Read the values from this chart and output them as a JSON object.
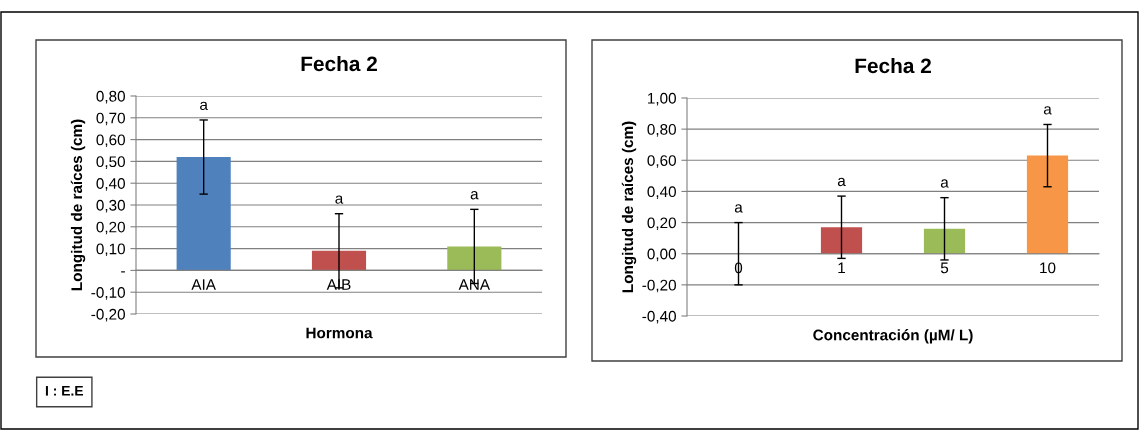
{
  "chart_data": [
    {
      "type": "bar",
      "title": "Fecha 2",
      "xlabel": "Hormona",
      "ylabel": "Longitud de raíces (cm)",
      "categories": [
        "AIA",
        "AIB",
        "ANA"
      ],
      "values": [
        0.52,
        0.09,
        0.11
      ],
      "colors": [
        "#4f81bd",
        "#c0504d",
        "#9bbb59"
      ],
      "errors": [
        0.17,
        0.17,
        0.17
      ],
      "ylim": [
        -0.2,
        0.8
      ],
      "yticks": [
        {
          "value": -0.2,
          "label": "-0,20"
        },
        {
          "value": -0.1,
          "label": "-0,10"
        },
        {
          "value": 0,
          "label": "-"
        },
        {
          "value": 0.1,
          "label": "0,10"
        },
        {
          "value": 0.2,
          "label": "0,20"
        },
        {
          "value": 0.3,
          "label": "0,30"
        },
        {
          "value": 0.4,
          "label": "0,40"
        },
        {
          "value": 0.5,
          "label": "0,50"
        },
        {
          "value": 0.6,
          "label": "0,60"
        },
        {
          "value": 0.7,
          "label": "0,70"
        },
        {
          "value": 0.8,
          "label": "0,80"
        }
      ],
      "grid": "y",
      "annotations": [
        "a",
        "a",
        "a",
        "I : E.E"
      ]
    },
    {
      "type": "bar",
      "title": "Fecha 2",
      "xlabel": "Concentración (µM/ L)",
      "ylabel": "Longitud de raíces (cm)",
      "categories": [
        "0",
        "1",
        "5",
        "10"
      ],
      "values": [
        0,
        0.17,
        0.16,
        0.63
      ],
      "colors": [
        "#4f81bd",
        "#c0504d",
        "#9bbb59",
        "#f79646"
      ],
      "errors": [
        0.2,
        0.2,
        0.2,
        0.2
      ],
      "ylim": [
        -0.4,
        1.0
      ],
      "yticks": [
        {
          "value": -0.4,
          "label": "-0,40"
        },
        {
          "value": -0.2,
          "label": "-0,20"
        },
        {
          "value": 0,
          "label": "0,00"
        },
        {
          "value": 0.2,
          "label": "0,20"
        },
        {
          "value": 0.4,
          "label": "0,40"
        },
        {
          "value": 0.6,
          "label": "0,60"
        },
        {
          "value": 0.8,
          "label": "0,80"
        },
        {
          "value": 1.0,
          "label": "1,00"
        }
      ],
      "grid": "y",
      "annotations": [
        "a",
        "a",
        "a",
        "a"
      ]
    }
  ]
}
